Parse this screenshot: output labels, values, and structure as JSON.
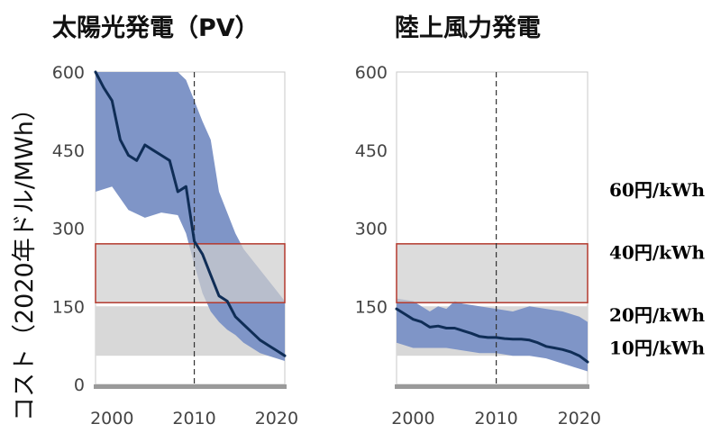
{
  "ylabel": "コスト（2020年ドル/MWh）",
  "colors": {
    "line": "#0f2d56",
    "band": "#7f95c7",
    "highlight_fill": "#cfcfcf",
    "highlight_stroke": "#b33a2e",
    "lower_range_fill": "#d8d8d8",
    "axis_bar": "#9a9a9a"
  },
  "annotations": [
    {
      "label": "60円/kWh",
      "value": 375
    },
    {
      "label": "40円/kWh",
      "value": 255
    },
    {
      "label": "20円/kWh",
      "value": 135
    },
    {
      "label": "10円/kWh",
      "value": 72
    }
  ],
  "chart_data": [
    {
      "type": "area",
      "title": "太陽光発電（PV）",
      "xlim": [
        1998,
        2021
      ],
      "ylim": [
        0,
        600
      ],
      "yticks": [
        0,
        150,
        300,
        450,
        600
      ],
      "xticks": [
        2000,
        2010,
        2020
      ],
      "dashed_x": 2010,
      "highlight_range": [
        157,
        270
      ],
      "lower_range": [
        55,
        150
      ],
      "band_upper": {
        "x": [
          1998,
          2000,
          2002,
          2004,
          2006,
          2008,
          2009,
          2010,
          2011,
          2012,
          2013,
          2014,
          2015,
          2016,
          2017,
          2018,
          2019,
          2020,
          2021
        ],
        "y": [
          600,
          600,
          600,
          600,
          600,
          600,
          585,
          545,
          505,
          470,
          370,
          330,
          290,
          260,
          240,
          220,
          200,
          180,
          160
        ]
      },
      "band_lower": {
        "x": [
          1998,
          2000,
          2002,
          2004,
          2006,
          2008,
          2009,
          2010,
          2011,
          2012,
          2013,
          2014,
          2015,
          2016,
          2017,
          2018,
          2019,
          2020,
          2021
        ],
        "y": [
          370,
          380,
          335,
          320,
          330,
          325,
          290,
          230,
          175,
          140,
          120,
          105,
          95,
          80,
          70,
          60,
          55,
          50,
          45
        ]
      },
      "series": [
        {
          "x": [
            1998,
            1999,
            2000,
            2001,
            2002,
            2003,
            2004,
            2005,
            2006,
            2007,
            2008,
            2009,
            2010,
            2011,
            2012,
            2013,
            2014,
            2015,
            2016,
            2017,
            2018,
            2019,
            2020,
            2021
          ],
          "y": [
            600,
            570,
            545,
            470,
            440,
            430,
            460,
            450,
            440,
            430,
            370,
            380,
            275,
            250,
            210,
            170,
            160,
            130,
            115,
            100,
            85,
            75,
            65,
            55
          ]
        }
      ]
    },
    {
      "type": "area",
      "title": "陸上風力発電",
      "xlim": [
        1998,
        2021
      ],
      "ylim": [
        0,
        600
      ],
      "yticks": [
        150,
        300,
        450,
        600
      ],
      "xticks": [
        2000,
        2010,
        2020
      ],
      "dashed_x": 2010,
      "highlight_range": [
        157,
        270
      ],
      "lower_range": [
        55,
        150
      ],
      "band_upper": {
        "x": [
          1998,
          2000,
          2002,
          2003,
          2004,
          2005,
          2006,
          2008,
          2010,
          2012,
          2014,
          2016,
          2018,
          2020,
          2021
        ],
        "y": [
          165,
          160,
          140,
          150,
          145,
          160,
          155,
          150,
          145,
          140,
          150,
          145,
          140,
          130,
          120
        ]
      },
      "band_lower": {
        "x": [
          1998,
          2000,
          2002,
          2004,
          2006,
          2008,
          2010,
          2012,
          2014,
          2016,
          2018,
          2020,
          2021
        ],
        "y": [
          80,
          70,
          70,
          70,
          65,
          60,
          60,
          55,
          55,
          50,
          40,
          30,
          25
        ]
      },
      "series": [
        {
          "x": [
            1998,
            1999,
            2000,
            2001,
            2002,
            2003,
            2004,
            2005,
            2006,
            2007,
            2008,
            2009,
            2010,
            2011,
            2012,
            2013,
            2014,
            2015,
            2016,
            2017,
            2018,
            2019,
            2020,
            2021
          ],
          "y": [
            145,
            135,
            125,
            120,
            110,
            112,
            108,
            108,
            103,
            98,
            92,
            90,
            90,
            88,
            87,
            87,
            85,
            80,
            73,
            70,
            67,
            62,
            55,
            43
          ]
        }
      ]
    }
  ]
}
